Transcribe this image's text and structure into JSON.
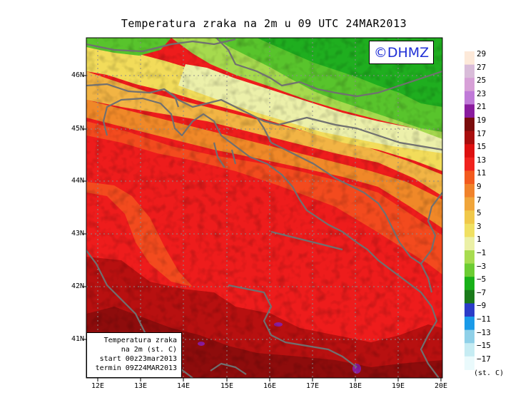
{
  "title": "Temperatura zraka na 2m u 09 UTC 24MAR2013",
  "logo_text": "©DHMZ",
  "info_box": {
    "line1": "Temperatura zraka",
    "line2": "na 2m (st. C)",
    "line3": "start 00z23mar2013",
    "line4": "termin 09Z24MAR2013"
  },
  "lat_labels": [
    "46N",
    "45N",
    "44N",
    "43N",
    "42N",
    "41N"
  ],
  "lon_labels": [
    "12E",
    "13E",
    "14E",
    "15E",
    "16E",
    "17E",
    "18E",
    "19E",
    "20E"
  ],
  "colorbar": {
    "unit_label": "(st. C)",
    "levels": [
      "29",
      "27",
      "25",
      "23",
      "21",
      "19",
      "17",
      "15",
      "13",
      "11",
      "9",
      "7",
      "5",
      "3",
      "1",
      "−1",
      "−3",
      "−5",
      "−7",
      "−9",
      "−11",
      "−13",
      "−15",
      "−17"
    ],
    "colors": [
      "#fde9d9",
      "#d9bcd9",
      "#d7a0d7",
      "#c07ad8",
      "#8a1c9e",
      "#7a0c0c",
      "#a80e0e",
      "#dd1010",
      "#f0231e",
      "#f25a1e",
      "#f0822a",
      "#f0a53a",
      "#f0c84a",
      "#f0e062",
      "#ebf0a6",
      "#a8dc50",
      "#6ccc33",
      "#18b018",
      "#1a7a1a",
      "#2b3cc8",
      "#1a9ae8",
      "#8fd0e8",
      "#c6ecf3",
      "#eafafc"
    ]
  },
  "colors": {
    "coastline": "#707070",
    "grid": "#8a8a8a",
    "logo_text": "#1f2fd6"
  }
}
